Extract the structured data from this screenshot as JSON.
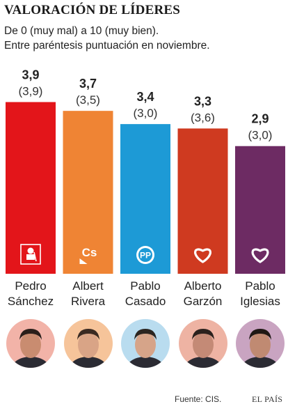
{
  "title": "VALORACIÓN DE LÍDERES",
  "subtitle_line1": "De 0 (muy mal) a 10 (muy bien).",
  "subtitle_line2": "Entre paréntesis puntuación en noviembre.",
  "source": "Fuente: CIS.",
  "brand": "EL PAÍS",
  "chart_data": {
    "type": "bar",
    "categories": [
      "Pedro Sánchez",
      "Albert Rivera",
      "Pablo Casado",
      "Alberto Garzón",
      "Pablo Iglesias"
    ],
    "name_lines": [
      [
        "Pedro",
        "Sánchez"
      ],
      [
        "Albert",
        "Rivera"
      ],
      [
        "Pablo",
        "Casado"
      ],
      [
        "Alberto",
        "Garzón"
      ],
      [
        "Pablo",
        "Iglesias"
      ]
    ],
    "series": [
      {
        "values": [
          3.9,
          3.7,
          3.4,
          3.3,
          2.9
        ]
      },
      {
        "values": [
          3.9,
          3.5,
          3.0,
          3.6,
          3.0
        ]
      }
    ],
    "value_labels": [
      "3,9",
      "3,7",
      "3,4",
      "3,3",
      "2,9"
    ],
    "previous_labels": [
      "(3,9)",
      "(3,5)",
      "(3,0)",
      "(3,6)",
      "(3,0)"
    ],
    "colors": [
      "#e3151a",
      "#ef8434",
      "#1d9ad6",
      "#cf3a20",
      "#6d2b63"
    ],
    "party_icons": [
      "psoe-logo-icon",
      "ciudadanos-logo-icon",
      "pp-logo-icon",
      "heart-icon",
      "heart-icon"
    ],
    "icon_text": [
      "",
      "Cs",
      "PP",
      "",
      ""
    ],
    "ylim": [
      0,
      10
    ],
    "grid": false,
    "legend": "none"
  }
}
